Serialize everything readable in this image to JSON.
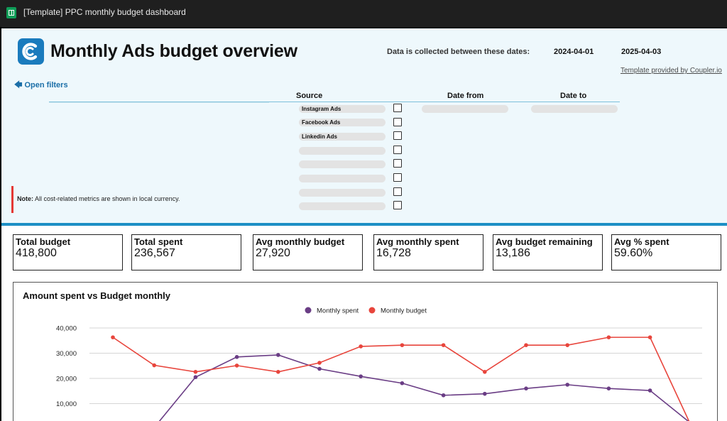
{
  "window": {
    "title": "[Template] PPC monthly budget dashboard"
  },
  "header": {
    "title": "Monthly Ads budget overview",
    "dates_label": "Data is collected between these dates:",
    "date_start": "2024-04-01",
    "date_end": "2025-04-03",
    "template_link": "Template provided by Coupler.io",
    "open_filters": "Open filters"
  },
  "filters": {
    "source_header": "Source",
    "date_from_header": "Date from",
    "date_to_header": "Date to",
    "sources": [
      "Instagram Ads",
      "Facebook Ads",
      "Linkedin Ads",
      "",
      "",
      "",
      "",
      ""
    ]
  },
  "note": {
    "prefix": "Note:",
    "text": " All cost-related metrics are shown in local currency."
  },
  "kpis": [
    {
      "label": "Total budget",
      "value": "418,800"
    },
    {
      "label": "Total spent",
      "value": "236,567"
    },
    {
      "label": "Avg monthly budget",
      "value": "27,920"
    },
    {
      "label": "Avg monthly spent",
      "value": "16,728"
    },
    {
      "label": "Avg budget remaining",
      "value": "13,186"
    },
    {
      "label": "Avg % spent",
      "value": "59.60%"
    }
  ],
  "colors": {
    "spent": "#6a3d85",
    "budget": "#e8453c",
    "accent": "#1d8fc5"
  },
  "chart_data": {
    "type": "line",
    "title": "Amount spent vs Budget monthly",
    "series": [
      {
        "name": "Monthly spent",
        "values": [
          null,
          500,
          20500,
          28500,
          29300,
          23800,
          20800,
          18100,
          13300,
          13900,
          16000,
          17500,
          16000,
          15200,
          2000
        ]
      },
      {
        "name": "Monthly budget",
        "values": [
          36300,
          25200,
          22600,
          25100,
          22600,
          26200,
          32700,
          33200,
          33200,
          22600,
          33200,
          33200,
          36300,
          36300,
          1000
        ]
      }
    ],
    "yticks": [
      "40,000",
      "30,000",
      "20,000",
      "10,000"
    ],
    "ytick_values": [
      40000,
      30000,
      20000,
      10000
    ],
    "grid": true,
    "legend": "top-center"
  }
}
